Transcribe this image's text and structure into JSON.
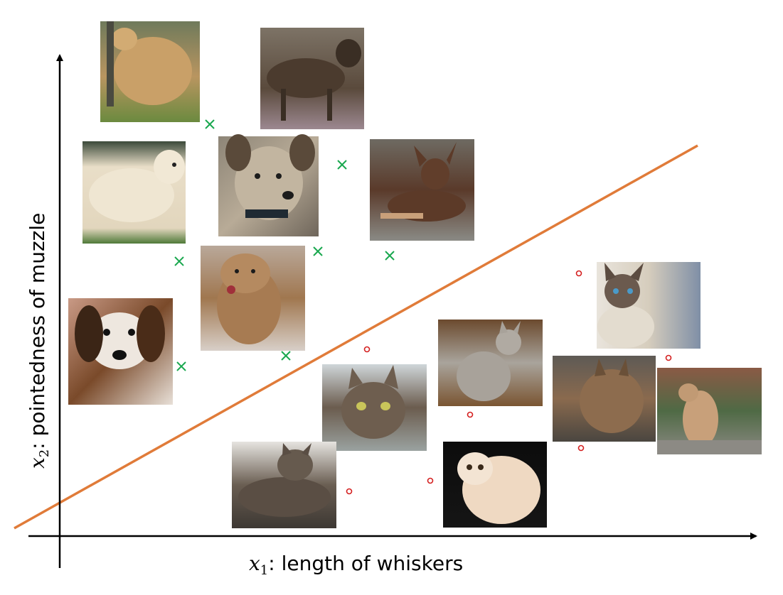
{
  "x_axis": {
    "variable": "x",
    "subscript": "1",
    "text": ": length of whiskers"
  },
  "y_axis": {
    "variable": "x",
    "subscript": "2",
    "text": ": pointedness of muzzle"
  },
  "colors": {
    "boundary": "#e07b39",
    "dog_marker": "#1aa84f",
    "cat_marker": "#d42020",
    "axis": "#000000"
  },
  "icons": {
    "dog_marker": "cross-marker-icon",
    "cat_marker": "circle-marker-icon",
    "dog_photo": "dog-photo",
    "cat_photo": "cat-photo"
  }
}
